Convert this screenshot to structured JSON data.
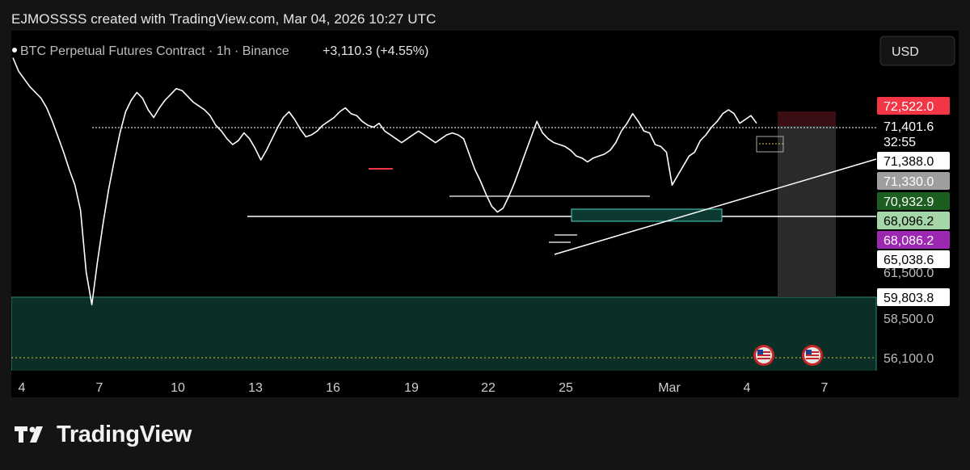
{
  "header": {
    "text": "EJMOSSSS created with TradingView.com, Mar 04, 2026 10:27 UTC"
  },
  "footer": {
    "brand": "TradingView"
  },
  "currency_button": {
    "label": "USD"
  },
  "colors": {
    "panel": "#000000",
    "line": "#ffffff",
    "red_badge": "#f23645",
    "green_badge": "#1b5e20",
    "light_green_badge": "#a5d6a7",
    "purple_badge": "#9c27b0",
    "gray_badge": "#9e9e9e",
    "zone": "#0b2e27",
    "zone_border": "#26a69a"
  },
  "chart_data": {
    "type": "line",
    "symbol_line": {
      "name": "BTC Perpetual Futures Contract · 1h · Binance",
      "change": "+3,110.3 (+4.55%)"
    },
    "x_ticks": [
      "4",
      "7",
      "10",
      "13",
      "16",
      "19",
      "22",
      "25",
      "Mar",
      "4",
      "7"
    ],
    "y_ticks": [
      "61,500.0",
      "58,500.0",
      "56,100.0"
    ],
    "price_badges": [
      {
        "label": "72,522.0",
        "style": "red"
      },
      {
        "label": "71,401.6",
        "style": "plain"
      },
      {
        "label": "32:55",
        "style": "plain"
      },
      {
        "label": "71,388.0",
        "style": "white"
      },
      {
        "label": "71,330.0",
        "style": "gray"
      },
      {
        "label": "70,932.9",
        "style": "green"
      },
      {
        "label": "68,096.2",
        "style": "lightgreen"
      },
      {
        "label": "68,086.2",
        "style": "purple"
      },
      {
        "label": "65,038.6",
        "style": "white"
      },
      {
        "label": "59,803.8",
        "style": "white"
      }
    ],
    "ylim": [
      55500,
      74500
    ],
    "series": [
      {
        "values": [
          73100,
          72400,
          72000,
          71600,
          71300,
          71000,
          70500,
          69800,
          69000,
          68200,
          67300,
          66500,
          65200,
          62000,
          60300,
          62500,
          64500,
          66300,
          67800,
          69200,
          70300,
          70900,
          71300,
          71000,
          70400,
          70000,
          70500,
          70900,
          71200,
          71500,
          71400,
          71100,
          70800,
          70600,
          70400,
          70100,
          69600,
          69300,
          68900,
          68600,
          68800,
          69200,
          68900,
          68400,
          67800,
          68300,
          68900,
          69500,
          70000,
          70300,
          69900,
          69400,
          69000,
          69100,
          69300,
          69600,
          69800,
          70000,
          70300,
          70500,
          70200,
          70100,
          69800,
          69600,
          69500,
          69700,
          69300,
          69100,
          68900,
          68700,
          68900,
          69100,
          69300,
          69100,
          68900,
          68700,
          68900,
          69100,
          69200,
          69100,
          68900,
          68100,
          67300,
          66700,
          66000,
          65400,
          65100,
          65300,
          65900,
          66600,
          67400,
          68200,
          69000,
          69800,
          69200,
          68900,
          68700,
          68600,
          68500,
          68300,
          68000,
          67900,
          67700,
          67900,
          68000,
          68100,
          68300,
          68700,
          69300,
          69700,
          70200,
          69800,
          69300,
          69200,
          68600,
          68500,
          68200,
          66500,
          67000,
          67500,
          68000,
          68200,
          68800,
          69100,
          69500,
          69800,
          70200,
          70400,
          70200,
          69700,
          69900,
          70100,
          69700
        ]
      }
    ],
    "annotations": {
      "range_high": 71401.6,
      "range_low": 68100,
      "mid_level": 68900,
      "support_zone": [
        56100,
        59803.8
      ]
    }
  }
}
